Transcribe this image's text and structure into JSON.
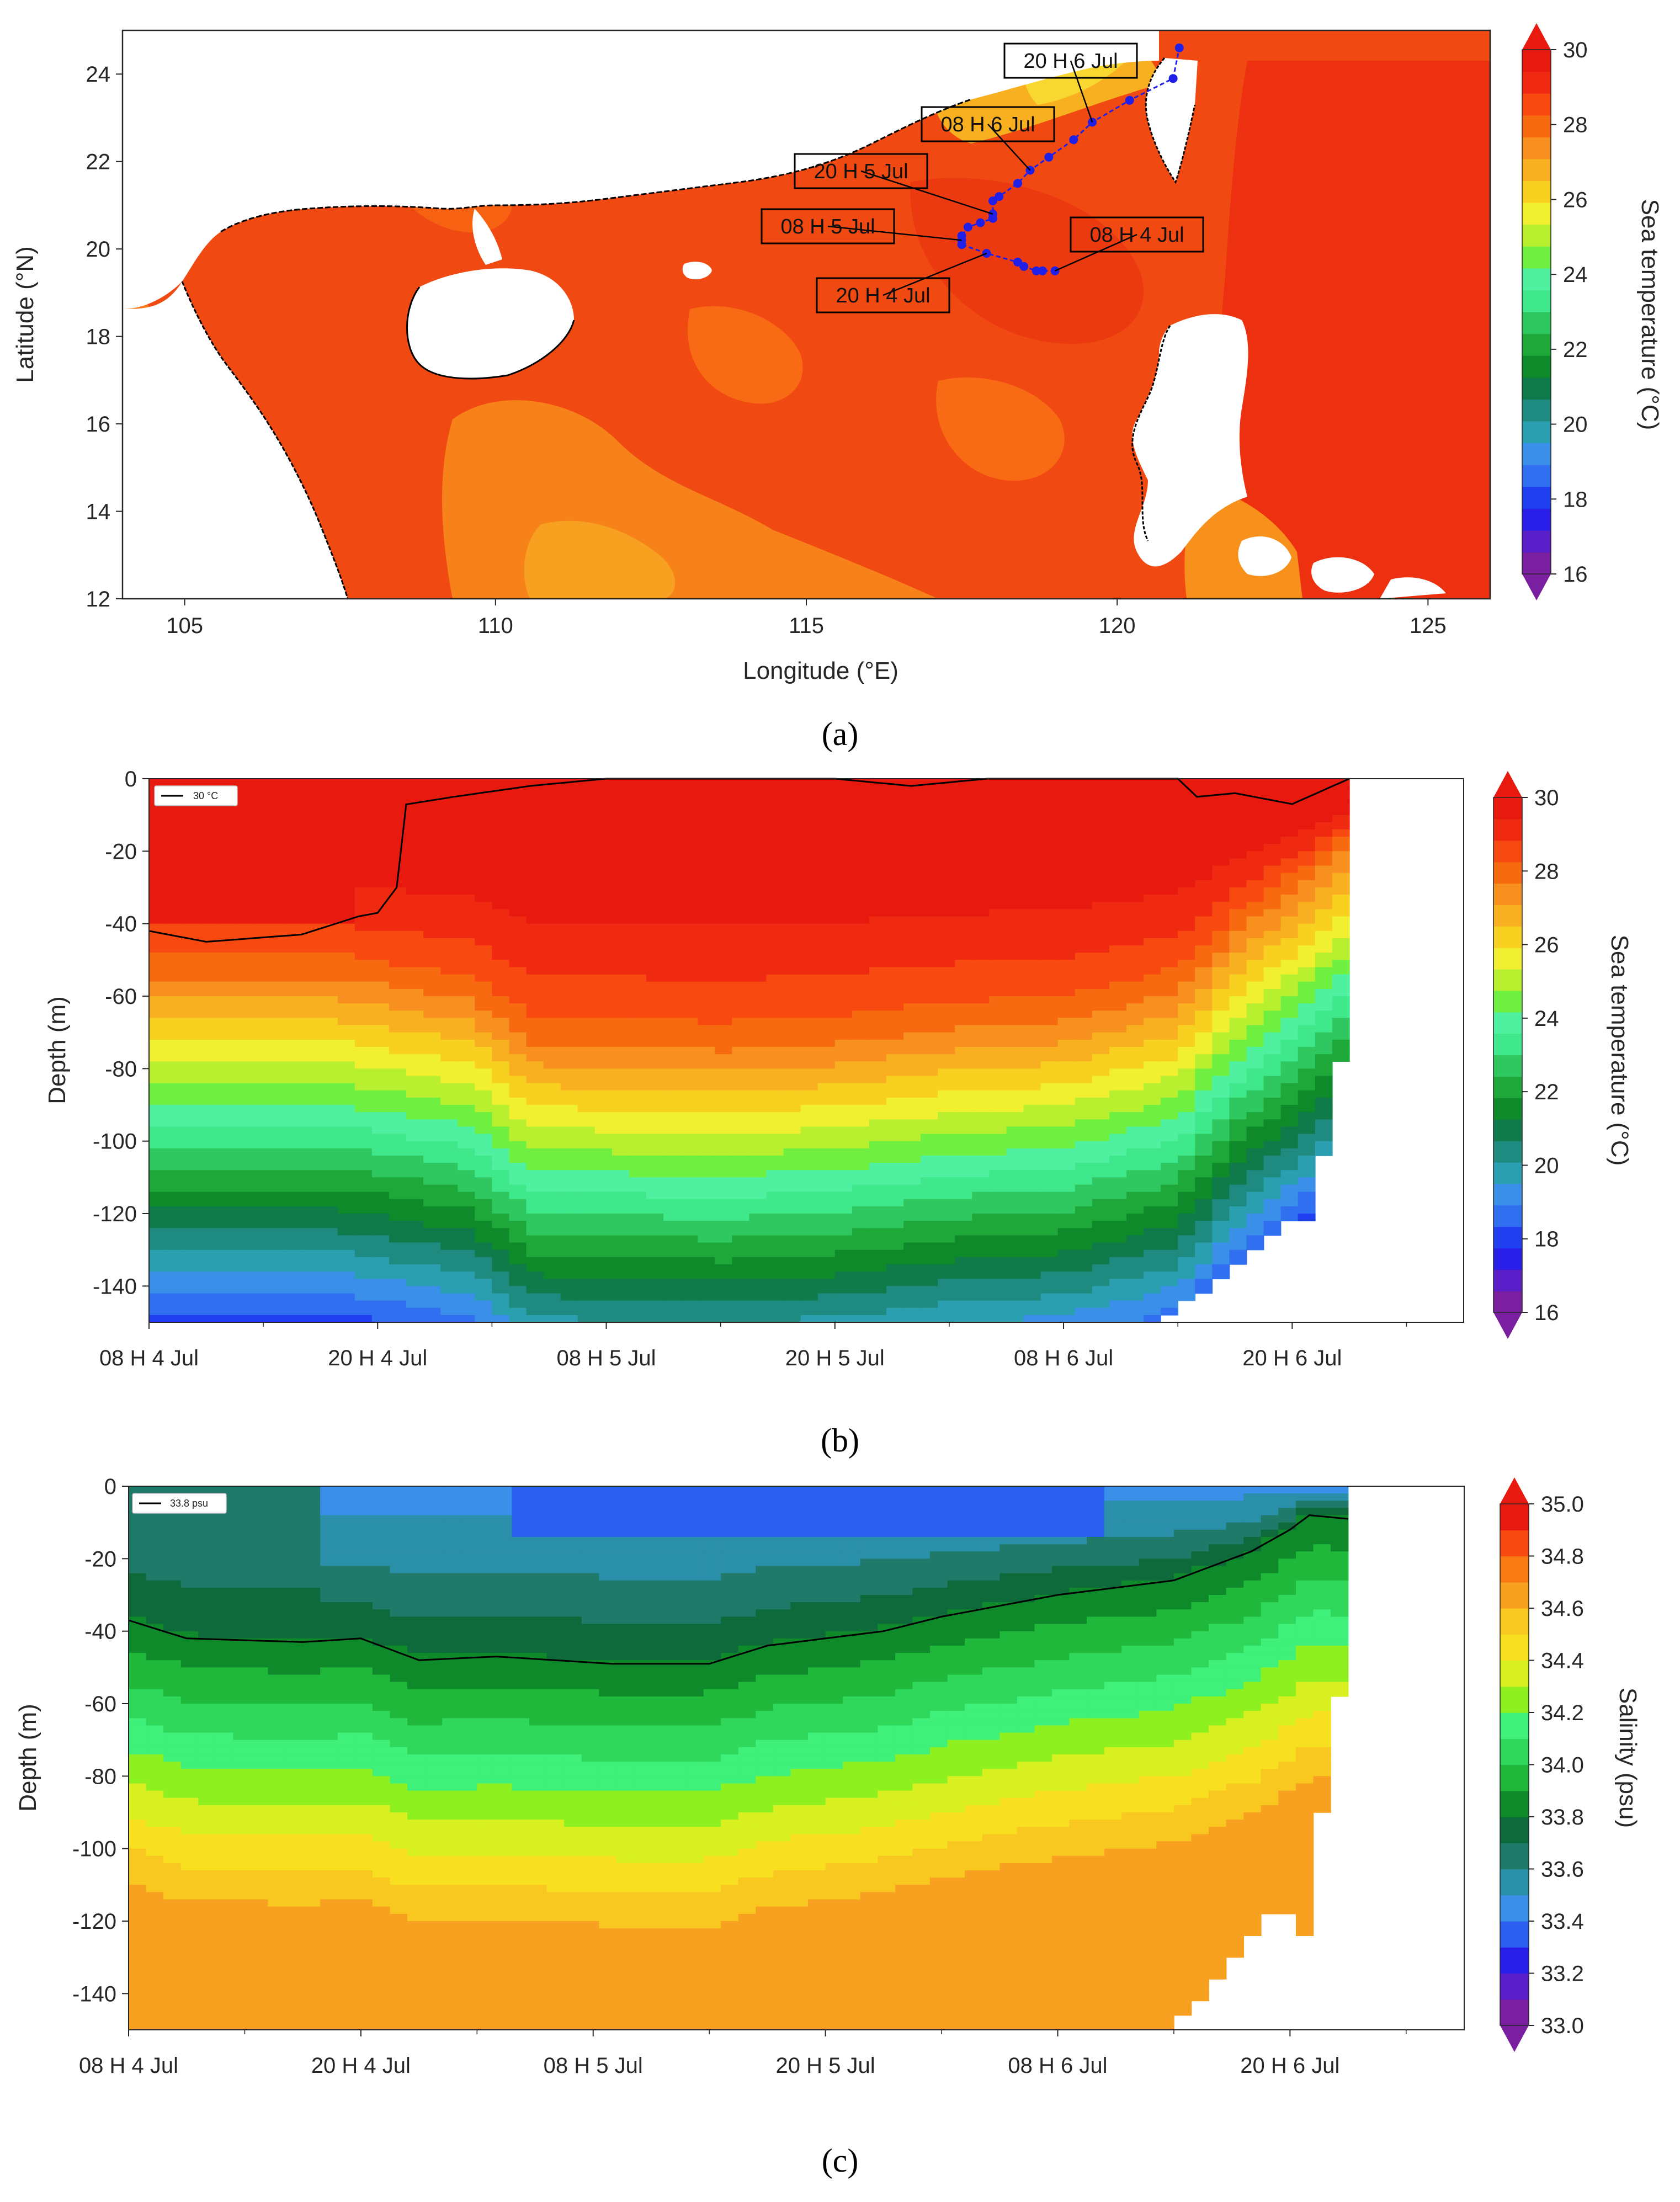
{
  "colors": {
    "land": "#ffffff",
    "track": "#1f1fe8",
    "contour": "#000000"
  },
  "temperature_colormap": [
    "#7a1fa0",
    "#5a1fc8",
    "#2a1fe8",
    "#1f3ff0",
    "#2f6ff0",
    "#3a8fe8",
    "#2a9fb0",
    "#1f8a80",
    "#0f7a4a",
    "#0e8a2a",
    "#1fa83a",
    "#2fc860",
    "#3fe88a",
    "#4ff0a0",
    "#6ff040",
    "#b8f030",
    "#f0f030",
    "#f8d020",
    "#f8b020",
    "#f89020",
    "#f86a10",
    "#f84a10",
    "#f02a10",
    "#e81a10"
  ],
  "salinity_colormap": [
    "#7a1fa0",
    "#5a1fc8",
    "#2a1fe8",
    "#2a5ff0",
    "#3a8fe8",
    "#2a8fa8",
    "#1f7a6a",
    "#0e6a3a",
    "#0e8a2a",
    "#1fb83a",
    "#2fd85a",
    "#3ff07a",
    "#8ff020",
    "#d8f020",
    "#f8e020",
    "#f8c820",
    "#f8a020",
    "#f87a10",
    "#f84a10",
    "#e81a10"
  ],
  "chart_data": [
    {
      "panel": "(a)",
      "type": "heatmap",
      "subtype": "map",
      "xlabel": "Longitude (°E)",
      "ylabel": "Latitude (°N)",
      "xlim": [
        104,
        126
      ],
      "ylim": [
        12,
        25
      ],
      "xticks": [
        "105",
        "110",
        "115",
        "120",
        "125"
      ],
      "xtick_values": [
        105,
        110,
        115,
        120,
        125
      ],
      "yticks": [
        "12",
        "14",
        "16",
        "18",
        "20",
        "22",
        "24"
      ],
      "ytick_values": [
        12,
        14,
        16,
        18,
        20,
        22,
        24
      ],
      "colorbar": {
        "label": "Sea temperature  (°C)",
        "min": 16,
        "max": 30,
        "ticks": [
          "16",
          "18",
          "20",
          "22",
          "24",
          "26",
          "28",
          "30"
        ],
        "tick_values": [
          16,
          18,
          20,
          22,
          24,
          26,
          28,
          30
        ]
      },
      "track": [
        {
          "lon": 119.0,
          "lat": 19.5
        },
        {
          "lon": 118.8,
          "lat": 19.5
        },
        {
          "lon": 118.7,
          "lat": 19.5
        },
        {
          "lon": 118.5,
          "lat": 19.6
        },
        {
          "lon": 118.4,
          "lat": 19.7
        },
        {
          "lon": 117.9,
          "lat": 19.9
        },
        {
          "lon": 117.5,
          "lat": 20.1
        },
        {
          "lon": 117.5,
          "lat": 20.2
        },
        {
          "lon": 117.5,
          "lat": 20.3
        },
        {
          "lon": 117.6,
          "lat": 20.5
        },
        {
          "lon": 117.8,
          "lat": 20.6
        },
        {
          "lon": 118.0,
          "lat": 20.7
        },
        {
          "lon": 118.0,
          "lat": 20.8
        },
        {
          "lon": 118.0,
          "lat": 21.1
        },
        {
          "lon": 118.1,
          "lat": 21.2
        },
        {
          "lon": 118.4,
          "lat": 21.5
        },
        {
          "lon": 118.6,
          "lat": 21.8
        },
        {
          "lon": 118.9,
          "lat": 22.1
        },
        {
          "lon": 119.3,
          "lat": 22.5
        },
        {
          "lon": 119.6,
          "lat": 22.9
        },
        {
          "lon": 120.2,
          "lat": 23.4
        },
        {
          "lon": 120.9,
          "lat": 23.9
        },
        {
          "lon": 121.0,
          "lat": 24.6
        }
      ],
      "annotations": [
        {
          "text": "20 H 6 Jul",
          "lon": 119.6,
          "lat": 22.9
        },
        {
          "text": "08 H 6 Jul",
          "lon": 118.6,
          "lat": 21.8
        },
        {
          "text": "20 H 5 Jul",
          "lon": 118.0,
          "lat": 20.8
        },
        {
          "text": "08 H 5 Jul",
          "lon": 117.5,
          "lat": 20.2
        },
        {
          "text": "08 H 4 Jul",
          "lon": 119.0,
          "lat": 19.5
        },
        {
          "text": "20 H 4 Jul",
          "lon": 117.9,
          "lat": 19.9
        }
      ]
    },
    {
      "panel": "(b)",
      "type": "heatmap",
      "subtype": "contourf",
      "ylabel": "Depth (m)",
      "xticks": [
        "08 H 4 Jul",
        "20 H 4 Jul",
        "08 H 5 Jul",
        "20 H 5 Jul",
        "08 H 6 Jul",
        "20 H 6 Jul"
      ],
      "xtick_hours": [
        0,
        12,
        24,
        36,
        48,
        60
      ],
      "xlim_hours": [
        0,
        69
      ],
      "ylim": [
        -150,
        0
      ],
      "yticks": [
        "0",
        "-20",
        "-40",
        "-60",
        "-80",
        "-100",
        "-120",
        "-140"
      ],
      "ytick_values": [
        0,
        -20,
        -40,
        -60,
        -80,
        -100,
        -120,
        -140
      ],
      "colorbar": {
        "label": "Sea temperature  (°C)",
        "min": 16,
        "max": 30,
        "ticks": [
          "16",
          "18",
          "20",
          "22",
          "24",
          "26",
          "28",
          "30"
        ],
        "tick_values": [
          16,
          18,
          20,
          22,
          24,
          26,
          28,
          30
        ]
      },
      "legend": "30 °C",
      "contour_value": 30,
      "data_end_hours": 63
    },
    {
      "panel": "(c)",
      "type": "heatmap",
      "subtype": "contourf",
      "ylabel": "Depth (m)",
      "xticks": [
        "08 H 4 Jul",
        "20 H 4 Jul",
        "08 H 5 Jul",
        "20 H 5 Jul",
        "08 H 6 Jul",
        "20 H 6 Jul"
      ],
      "xtick_hours": [
        0,
        12,
        24,
        36,
        48,
        60
      ],
      "xlim_hours": [
        0,
        69
      ],
      "ylim": [
        -150,
        0
      ],
      "yticks": [
        "0",
        "-20",
        "-40",
        "-60",
        "-80",
        "-100",
        "-120",
        "-140"
      ],
      "ytick_values": [
        0,
        -20,
        -40,
        -60,
        -80,
        -100,
        -120,
        -140
      ],
      "colorbar": {
        "label": "Salinity (psu)",
        "min": 33.0,
        "max": 35.0,
        "ticks": [
          "33.0",
          "33.2",
          "33.4",
          "33.6",
          "33.8",
          "34.0",
          "34.2",
          "34.4",
          "34.6",
          "34.8",
          "35.0"
        ],
        "tick_values": [
          33.0,
          33.2,
          33.4,
          33.6,
          33.8,
          34.0,
          34.2,
          34.4,
          34.6,
          34.8,
          35.0
        ]
      },
      "legend": "33.8 psu",
      "contour_value": 33.8,
      "data_end_hours": 63
    }
  ],
  "captions": [
    "(a)",
    "(b)",
    "(c)"
  ]
}
